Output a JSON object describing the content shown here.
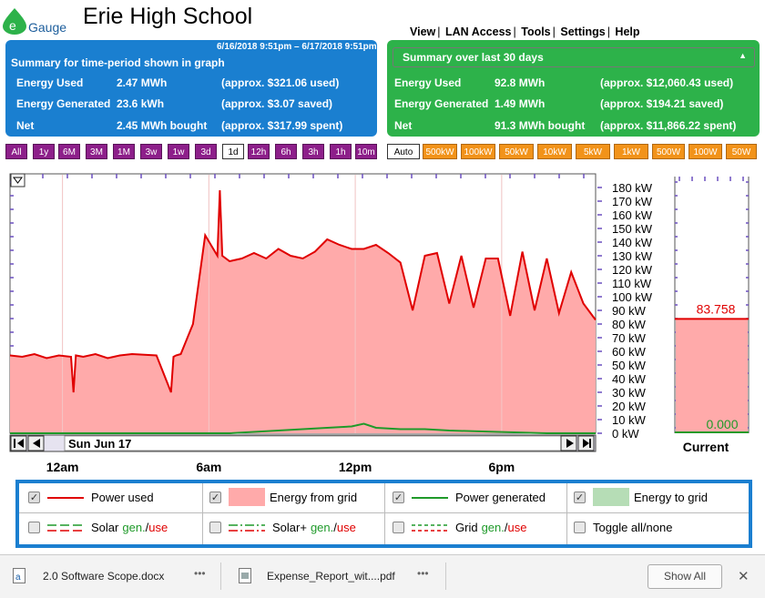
{
  "header": {
    "logo_letter": "e",
    "logo_text": "Gauge",
    "title": "Erie High School",
    "nav": [
      "View",
      "LAN Access",
      "Tools",
      "Settings",
      "Help"
    ]
  },
  "summary_left": {
    "range": "6/16/2018 9:51pm – 6/17/2018 9:51pm",
    "heading": "Summary for time-period shown in graph",
    "rows": [
      {
        "label": "Energy Used",
        "value": "2.47 MWh",
        "note": "(approx. $321.06 used)"
      },
      {
        "label": "Energy Generated",
        "value": "23.6 kWh",
        "note": "(approx. $3.07 saved)"
      },
      {
        "label": "Net",
        "value": "2.45 MWh bought",
        "note": "(approx. $317.99 spent)"
      }
    ]
  },
  "summary_right": {
    "selected": "Summary over last 30 days",
    "rows": [
      {
        "label": "Energy Used",
        "value": "92.8 MWh",
        "note": "(approx. $12,060.43 used)"
      },
      {
        "label": "Energy Generated",
        "value": "1.49 MWh",
        "note": "(approx. $194.21 saved)"
      },
      {
        "label": "Net",
        "value": "91.3 MWh bought",
        "note": "(approx. $11,866.22 spent)"
      }
    ]
  },
  "range_buttons": [
    "All",
    "1y",
    "6M",
    "3M",
    "1M",
    "3w",
    "1w",
    "3d",
    "1d",
    "12h",
    "6h",
    "3h",
    "1h",
    "10m"
  ],
  "range_selected": "1d",
  "scale_buttons": [
    "Auto",
    "500kW",
    "100kW",
    "50kW",
    "10kW",
    "5kW",
    "1kW",
    "500W",
    "100W",
    "50W"
  ],
  "scale_selected": "Auto",
  "chart": {
    "date_label": "Sun Jun 17",
    "current_label": "Current",
    "current_used": "83.758",
    "current_generated": "0.000",
    "y_ticks": [
      "180 kW",
      "170 kW",
      "160 kW",
      "150 kW",
      "140 kW",
      "130 kW",
      "120 kW",
      "110 kW",
      "100 kW",
      "90 kW",
      "80 kW",
      "70 kW",
      "60 kW",
      "50 kW",
      "40 kW",
      "30 kW",
      "20 kW",
      "10 kW",
      "0 kW"
    ],
    "x_ticks": [
      "12am",
      "6am",
      "12pm",
      "6pm"
    ]
  },
  "chart_data": {
    "type": "line",
    "ylim": [
      0,
      185
    ],
    "x_unit": "hours since 9:51pm Jun 16",
    "series": [
      {
        "name": "Power used",
        "x": [
          0,
          0.5,
          1,
          1.5,
          2,
          2.5,
          2.6,
          2.7,
          3,
          3.5,
          4,
          4.5,
          5,
          6,
          6.6,
          6.7,
          6.8,
          7,
          7.5,
          8,
          8.5,
          8.6,
          8.7,
          9,
          9.5,
          10,
          10.5,
          11,
          11.5,
          12,
          12.5,
          13,
          13.5,
          14,
          14.5,
          15,
          15.5,
          16,
          16.5,
          17,
          17.5,
          18,
          18.5,
          19,
          19.5,
          20,
          20.5,
          21,
          21.5,
          22,
          22.5,
          23,
          23.5,
          24
        ],
        "values": [
          57,
          56,
          58,
          55,
          57,
          56,
          30,
          57,
          56,
          58,
          55,
          57,
          58,
          57,
          30,
          56,
          57,
          58,
          80,
          145,
          130,
          178,
          130,
          126,
          128,
          132,
          128,
          135,
          130,
          128,
          133,
          142,
          138,
          135,
          135,
          138,
          132,
          125,
          90,
          130,
          132,
          95,
          130,
          92,
          128,
          128,
          86,
          133,
          90,
          128,
          88,
          118,
          95,
          83
        ]
      },
      {
        "name": "Power generated",
        "x": [
          0,
          9,
          11,
          12,
          13,
          14,
          14.5,
          15,
          16,
          17,
          18,
          20,
          22,
          24
        ],
        "values": [
          0,
          0,
          2,
          3,
          4,
          5,
          7,
          4,
          3,
          3,
          2,
          1,
          0,
          0
        ]
      }
    ]
  },
  "legend": [
    {
      "label": "Power used",
      "checked": true
    },
    {
      "label": "Energy from grid",
      "checked": true
    },
    {
      "label": "Power generated",
      "checked": true
    },
    {
      "label": "Energy to grid",
      "checked": true
    },
    {
      "label": "Solar",
      "gen": "gen.",
      "use": "use",
      "checked": false
    },
    {
      "label": "Solar+",
      "gen": "gen.",
      "use": "use",
      "checked": false
    },
    {
      "label": "Grid",
      "gen": "gen.",
      "use": "use",
      "checked": false
    },
    {
      "label": "Toggle all/none",
      "checked": false
    }
  ],
  "downloads": [
    {
      "name": "2.0 Software Scope.docx"
    },
    {
      "name": "Expense_Report_wit....pdf"
    }
  ],
  "download_bar": {
    "show_all": "Show All",
    "close": "✕",
    "more": "•••"
  },
  "colors": {
    "used": "#e00000",
    "grid_fill": "#ffaaaa",
    "generated": "#1f9a2a",
    "to_grid_fill": "#b6ddb6",
    "blue": "#1a7fd0",
    "green": "#2db24a",
    "purple": "#8d1f8a",
    "orange": "#f2931a"
  }
}
